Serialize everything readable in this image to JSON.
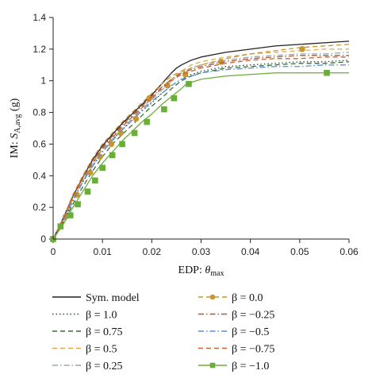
{
  "chart_data": {
    "type": "line",
    "xlabel_prefix": "EDP: ",
    "xlabel_symbol": "θ",
    "xlabel_sub": "max",
    "ylabel_prefix": "IM: ",
    "ylabel_symbol": "S",
    "ylabel_sub": "A,avg",
    "ylabel_unit": " (g)",
    "xlim": [
      0,
      0.06
    ],
    "ylim": [
      0,
      1.4
    ],
    "xticks": [
      0,
      0.01,
      0.02,
      0.03,
      0.04,
      0.05,
      0.06
    ],
    "xtick_labels": [
      "0",
      "0.01",
      "0.02",
      "0.03",
      "0.04",
      "0.05",
      "0.06"
    ],
    "yticks": [
      0,
      0.2,
      0.4,
      0.6,
      0.8,
      1.0,
      1.2,
      1.4
    ],
    "ytick_labels": [
      "0",
      "0.2",
      "0.4",
      "0.6",
      "0.8",
      "1",
      "1.2",
      "1.4"
    ],
    "grid": false,
    "legend_position": "bottom, two columns",
    "series": [
      {
        "name": "Sym. model",
        "color": "#222222",
        "dash": "solid",
        "marker": "none",
        "x": [
          0,
          0.002,
          0.004,
          0.006,
          0.008,
          0.01,
          0.012,
          0.014,
          0.016,
          0.018,
          0.02,
          0.022,
          0.024,
          0.025,
          0.026,
          0.028,
          0.03,
          0.035,
          0.04,
          0.045,
          0.05,
          0.055,
          0.06
        ],
        "y": [
          0,
          0.13,
          0.27,
          0.39,
          0.5,
          0.59,
          0.66,
          0.73,
          0.79,
          0.85,
          0.91,
          0.98,
          1.05,
          1.08,
          1.1,
          1.13,
          1.15,
          1.18,
          1.2,
          1.22,
          1.23,
          1.24,
          1.25
        ]
      },
      {
        "name": "β = 1.0",
        "color": "#1f4e3d",
        "dash": "dotted",
        "marker": "none",
        "x": [
          0,
          0.002,
          0.004,
          0.006,
          0.008,
          0.01,
          0.012,
          0.014,
          0.016,
          0.018,
          0.02,
          0.022,
          0.024,
          0.026,
          0.028,
          0.03,
          0.035,
          0.04,
          0.045,
          0.05,
          0.055,
          0.06
        ],
        "y": [
          0,
          0.11,
          0.24,
          0.36,
          0.46,
          0.55,
          0.63,
          0.69,
          0.75,
          0.81,
          0.86,
          0.92,
          0.97,
          1.01,
          1.04,
          1.06,
          1.09,
          1.1,
          1.11,
          1.12,
          1.12,
          1.13
        ]
      },
      {
        "name": "β = 0.75",
        "color": "#3a6b35",
        "dash": "dashed",
        "marker": "none",
        "x": [
          0,
          0.002,
          0.004,
          0.006,
          0.008,
          0.01,
          0.012,
          0.014,
          0.016,
          0.018,
          0.02,
          0.022,
          0.024,
          0.026,
          0.028,
          0.03,
          0.035,
          0.04,
          0.045,
          0.05,
          0.055,
          0.06
        ],
        "y": [
          0,
          0.1,
          0.22,
          0.33,
          0.43,
          0.52,
          0.6,
          0.66,
          0.72,
          0.78,
          0.84,
          0.89,
          0.95,
          1.0,
          1.03,
          1.05,
          1.08,
          1.09,
          1.1,
          1.11,
          1.11,
          1.12
        ]
      },
      {
        "name": "β = 0.5",
        "color": "#e0a94e",
        "dash": "dashed",
        "marker": "none",
        "x": [
          0,
          0.002,
          0.004,
          0.006,
          0.008,
          0.01,
          0.012,
          0.014,
          0.016,
          0.018,
          0.02,
          0.022,
          0.024,
          0.026,
          0.028,
          0.03,
          0.035,
          0.04,
          0.045,
          0.05,
          0.055,
          0.06
        ],
        "y": [
          0,
          0.12,
          0.26,
          0.38,
          0.48,
          0.57,
          0.64,
          0.71,
          0.77,
          0.83,
          0.89,
          0.95,
          1.01,
          1.06,
          1.1,
          1.12,
          1.15,
          1.17,
          1.18,
          1.19,
          1.2,
          1.2
        ]
      },
      {
        "name": "β = 0.25",
        "color": "#9aa7b0",
        "dash": "dashdot",
        "marker": "none",
        "x": [
          0,
          0.002,
          0.004,
          0.006,
          0.008,
          0.01,
          0.012,
          0.014,
          0.016,
          0.018,
          0.02,
          0.022,
          0.024,
          0.026,
          0.028,
          0.03,
          0.035,
          0.04,
          0.045,
          0.05,
          0.055,
          0.06
        ],
        "y": [
          0,
          0.11,
          0.25,
          0.37,
          0.47,
          0.56,
          0.63,
          0.7,
          0.76,
          0.82,
          0.88,
          0.94,
          1.0,
          1.05,
          1.08,
          1.1,
          1.13,
          1.15,
          1.16,
          1.17,
          1.17,
          1.18
        ]
      },
      {
        "name": "β = 0.0",
        "color": "#c8952e",
        "dash": "dashed",
        "marker": "circle",
        "x": [
          0,
          0.002,
          0.004,
          0.006,
          0.008,
          0.01,
          0.012,
          0.014,
          0.016,
          0.018,
          0.02,
          0.022,
          0.024,
          0.026,
          0.028,
          0.03,
          0.035,
          0.04,
          0.045,
          0.05,
          0.055,
          0.06
        ],
        "y": [
          0,
          0.13,
          0.28,
          0.4,
          0.51,
          0.6,
          0.67,
          0.74,
          0.8,
          0.86,
          0.92,
          0.98,
          1.03,
          1.06,
          1.08,
          1.1,
          1.14,
          1.17,
          1.19,
          1.21,
          1.22,
          1.23
        ],
        "marker_x": [
          0,
          0.0025,
          0.0048,
          0.0075,
          0.0095,
          0.0118,
          0.0137,
          0.0168,
          0.0195,
          0.0232,
          0.0268,
          0.034,
          0.0505
        ],
        "marker_y": [
          0,
          0.14,
          0.28,
          0.42,
          0.52,
          0.6,
          0.67,
          0.76,
          0.89,
          0.97,
          1.04,
          1.12,
          1.2
        ]
      },
      {
        "name": "β = −0.25",
        "color": "#b5562f",
        "dash": "dashdot",
        "marker": "none",
        "x": [
          0,
          0.002,
          0.004,
          0.006,
          0.008,
          0.01,
          0.012,
          0.014,
          0.016,
          0.018,
          0.02,
          0.022,
          0.024,
          0.026,
          0.028,
          0.03,
          0.035,
          0.04,
          0.045,
          0.05,
          0.055,
          0.06
        ],
        "y": [
          0,
          0.12,
          0.27,
          0.39,
          0.49,
          0.58,
          0.65,
          0.72,
          0.78,
          0.84,
          0.9,
          0.96,
          1.01,
          1.05,
          1.07,
          1.09,
          1.12,
          1.14,
          1.15,
          1.16,
          1.16,
          1.16
        ]
      },
      {
        "name": "β = −0.5",
        "color": "#5b8fd6",
        "dash": "dashdot",
        "marker": "none",
        "x": [
          0,
          0.002,
          0.004,
          0.006,
          0.008,
          0.01,
          0.012,
          0.014,
          0.016,
          0.018,
          0.02,
          0.022,
          0.024,
          0.026,
          0.028,
          0.03,
          0.035,
          0.04,
          0.045,
          0.05,
          0.055,
          0.06
        ],
        "y": [
          0,
          0.11,
          0.24,
          0.36,
          0.46,
          0.55,
          0.62,
          0.69,
          0.75,
          0.81,
          0.87,
          0.92,
          0.97,
          1.01,
          1.03,
          1.05,
          1.07,
          1.08,
          1.09,
          1.09,
          1.1,
          1.1
        ]
      },
      {
        "name": "β = −0.75",
        "color": "#c0683a",
        "dash": "dashed",
        "marker": "none",
        "x": [
          0,
          0.002,
          0.004,
          0.006,
          0.008,
          0.01,
          0.012,
          0.014,
          0.016,
          0.018,
          0.02,
          0.022,
          0.024,
          0.026,
          0.028,
          0.03,
          0.035,
          0.04,
          0.045,
          0.05,
          0.055,
          0.06
        ],
        "y": [
          0,
          0.12,
          0.26,
          0.38,
          0.48,
          0.57,
          0.64,
          0.71,
          0.77,
          0.83,
          0.89,
          0.95,
          1.0,
          1.04,
          1.06,
          1.08,
          1.11,
          1.13,
          1.14,
          1.14,
          1.15,
          1.15
        ]
      },
      {
        "name": "β = −1.0",
        "color": "#6aad3a",
        "dash": "solid",
        "marker": "square",
        "x": [
          0,
          0.002,
          0.004,
          0.006,
          0.008,
          0.01,
          0.012,
          0.014,
          0.016,
          0.018,
          0.02,
          0.022,
          0.024,
          0.026,
          0.027,
          0.028,
          0.03,
          0.035,
          0.04,
          0.045,
          0.05,
          0.055,
          0.06
        ],
        "y": [
          0,
          0.09,
          0.2,
          0.3,
          0.4,
          0.48,
          0.55,
          0.62,
          0.68,
          0.74,
          0.79,
          0.85,
          0.9,
          0.95,
          0.98,
          0.99,
          1.01,
          1.03,
          1.04,
          1.05,
          1.05,
          1.05,
          1.05
        ],
        "marker_x": [
          0,
          0.0015,
          0.0035,
          0.005,
          0.007,
          0.0085,
          0.01,
          0.012,
          0.014,
          0.0165,
          0.019,
          0.0225,
          0.0245,
          0.0275,
          0.0555
        ],
        "marker_y": [
          0,
          0.08,
          0.15,
          0.22,
          0.3,
          0.37,
          0.45,
          0.53,
          0.6,
          0.67,
          0.74,
          0.82,
          0.89,
          0.98,
          1.05
        ]
      }
    ]
  }
}
